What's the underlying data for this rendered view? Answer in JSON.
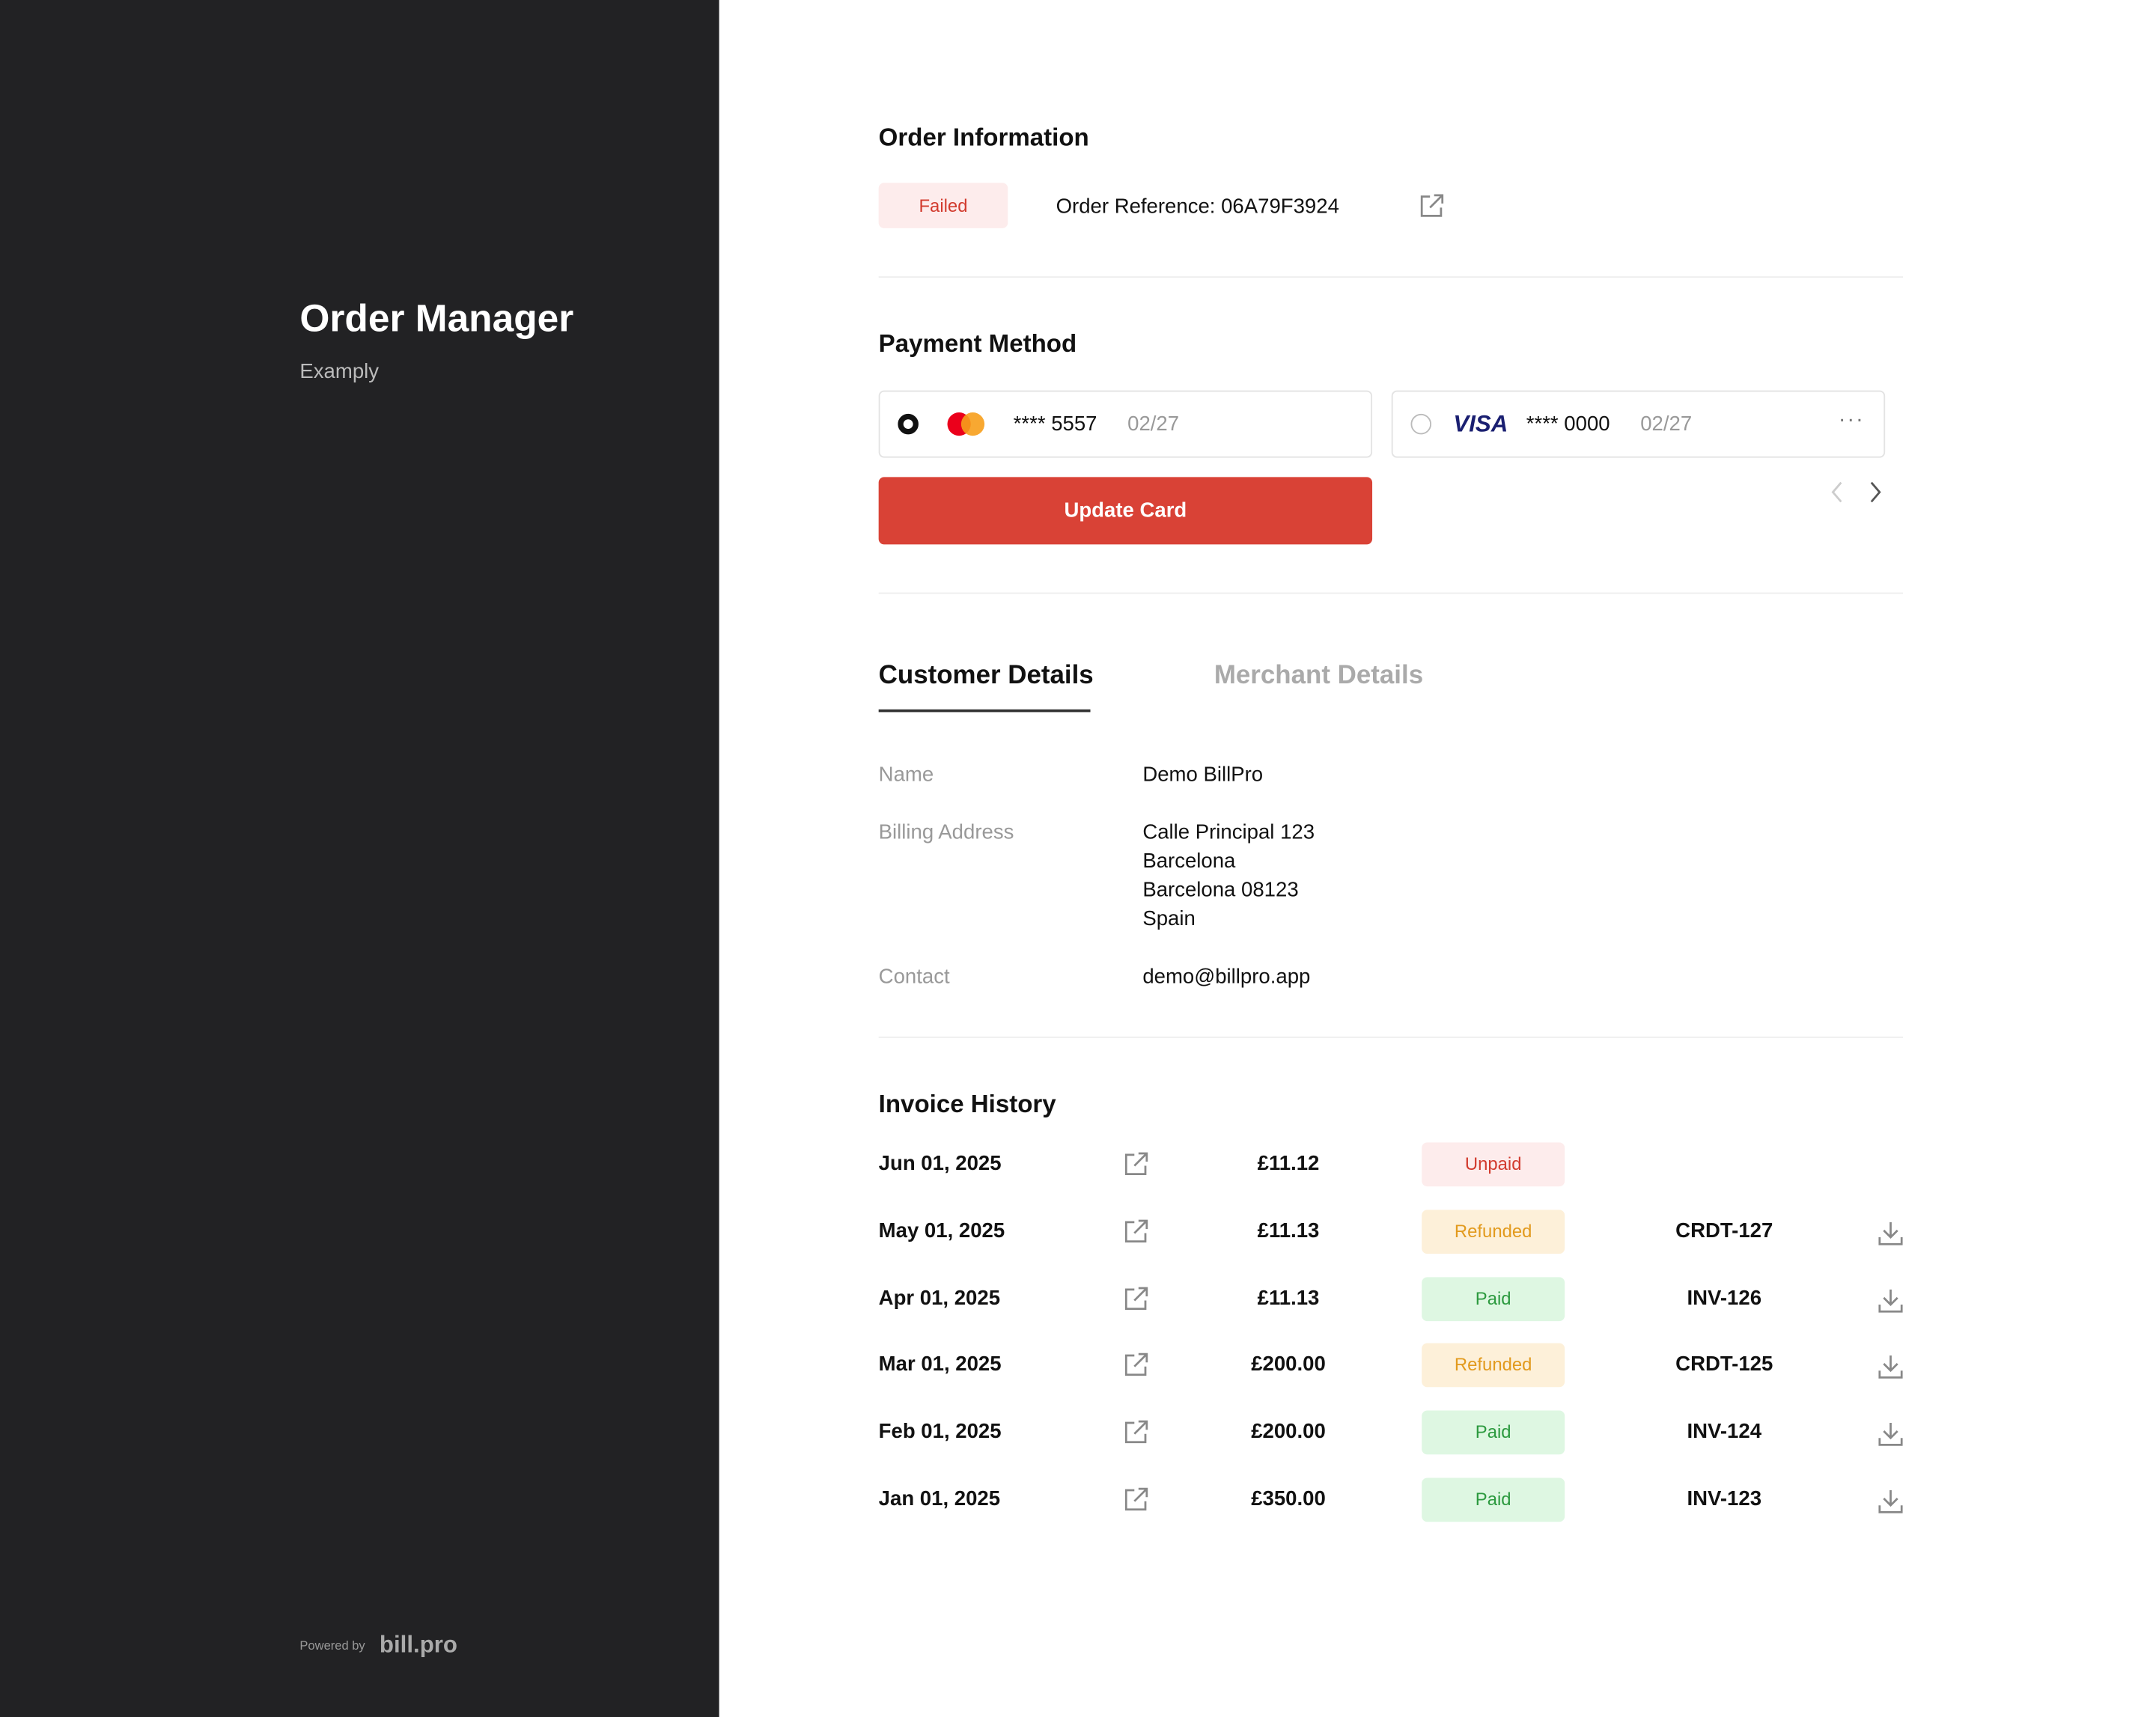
{
  "sidebar": {
    "title": "Order Manager",
    "subtitle": "Examply",
    "powered_by": "Powered by",
    "brand": "bill.pro"
  },
  "order_info": {
    "heading": "Order Information",
    "status": "Failed",
    "reference": "Order Reference: 06A79F3924"
  },
  "payment": {
    "heading": "Payment Method",
    "cards": [
      {
        "number": "**** 5557",
        "expiry": "02/27",
        "selected": true
      },
      {
        "brand": "VISA",
        "number": "**** 0000",
        "expiry": "02/27",
        "selected": false
      }
    ],
    "button": "Update Card"
  },
  "tabs": [
    "Customer Details",
    "Merchant Details"
  ],
  "details": [
    {
      "label": "Name",
      "lines": [
        "Demo BillPro"
      ]
    },
    {
      "label": "Billing Address",
      "lines": [
        "Calle Principal 123",
        "Barcelona",
        "Barcelona 08123",
        "Spain"
      ]
    },
    {
      "label": "Contact",
      "lines": [
        "demo@billpro.app"
      ]
    }
  ],
  "invoices": {
    "heading": "Invoice History",
    "rows": [
      {
        "date": "Jun 01, 2025",
        "amount": "£11.12",
        "status": "Unpaid",
        "status_bg": "#fdecec",
        "status_color": "#d23b2e"
      },
      {
        "date": "May 01, 2025",
        "amount": "£11.13",
        "status": "Refunded",
        "status_bg": "#fdf0d9",
        "status_color": "#e29a1d",
        "doc": "CRDT-127"
      },
      {
        "date": "Apr 01, 2025",
        "amount": "£11.13",
        "status": "Paid",
        "status_bg": "#def7e2",
        "status_color": "#2c9a3f",
        "doc": "INV-126"
      },
      {
        "date": "Mar 01, 2025",
        "amount": "£200.00",
        "status": "Refunded",
        "status_bg": "#fdf0d9",
        "status_color": "#e29a1d",
        "doc": "CRDT-125"
      },
      {
        "date": "Feb 01, 2025",
        "amount": "£200.00",
        "status": "Paid",
        "status_bg": "#def7e2",
        "status_color": "#2c9a3f",
        "doc": "INV-124"
      },
      {
        "date": "Jan 01, 2025",
        "amount": "£350.00",
        "status": "Paid",
        "status_bg": "#def7e2",
        "status_color": "#2c9a3f",
        "doc": "INV-123"
      }
    ]
  }
}
